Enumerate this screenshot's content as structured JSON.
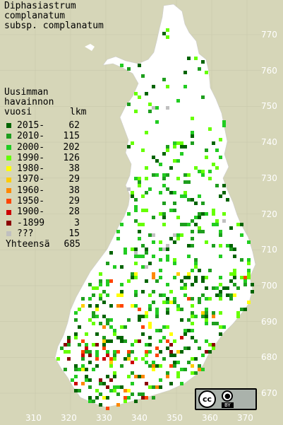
{
  "title": {
    "line1": "Diphasiastrum",
    "line2": "complanatum",
    "line3": "subsp. complanatum"
  },
  "legend": {
    "head1": "Uusimman",
    "head2": "havainnon",
    "col_year": "vuosi",
    "col_count": "lkm",
    "items": [
      {
        "label": "2015-",
        "count": "62",
        "color": "#006400"
      },
      {
        "label": "2010-",
        "count": "115",
        "color": "#1e9e1e"
      },
      {
        "label": "2000-",
        "count": "202",
        "color": "#22cc22"
      },
      {
        "label": "1990-",
        "count": "126",
        "color": "#66ff00"
      },
      {
        "label": "1980-",
        "count": "38",
        "color": "#ffff00"
      },
      {
        "label": "1970-",
        "count": "29",
        "color": "#ffcc00"
      },
      {
        "label": "1960-",
        "count": "38",
        "color": "#ff8800"
      },
      {
        "label": "1950-",
        "count": "29",
        "color": "#ff4400"
      },
      {
        "label": "1900-",
        "count": "28",
        "color": "#cc0000"
      },
      {
        "label": "-1899",
        "count": "3",
        "color": "#8b0000"
      },
      {
        "label": "???",
        "count": "15",
        "color": "#c0c0c0"
      }
    ],
    "total_label": "Yhteensä",
    "total_count": "685"
  },
  "axes": {
    "y_ticks": [
      "770",
      "760",
      "750",
      "740",
      "730",
      "720",
      "710",
      "700",
      "690",
      "680",
      "670"
    ],
    "x_ticks": [
      "310",
      "320",
      "330",
      "340",
      "350",
      "360",
      "370"
    ]
  },
  "license": {
    "cc": "cc",
    "by_label": "BY",
    "by_icon": "person-icon"
  },
  "colors": {
    "background": "#d6d6b8",
    "land": "#ffffff",
    "grid": "#e8e8e8"
  }
}
